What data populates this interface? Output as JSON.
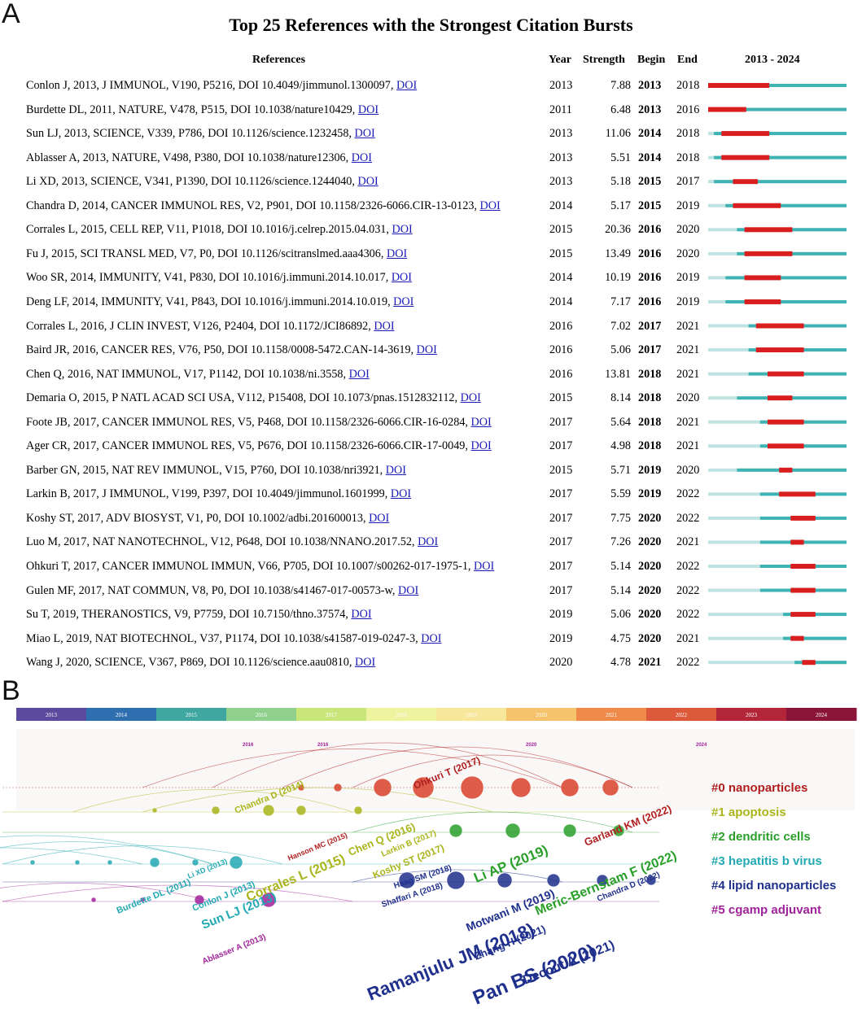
{
  "panel_a_label": "A",
  "panel_b_label": "B",
  "chart_data": [
    {
      "type": "table",
      "title": "Top 25 References with the Strongest Citation Bursts",
      "columns": [
        "References",
        "Year",
        "Strength",
        "Begin",
        "End",
        "2013 - 2024"
      ],
      "range": [
        2013,
        2024
      ],
      "rows": [
        {
          "ref": "Conlon J, 2013, J IMMUNOL, V190, P5216, DOI 10.4049/jimmunol.1300097,",
          "year": 2013,
          "strength": "7.88",
          "begin": 2013,
          "end": 2018
        },
        {
          "ref": "Burdette DL, 2011, NATURE, V478, P515, DOI 10.1038/nature10429,",
          "year": 2011,
          "strength": "6.48",
          "begin": 2013,
          "end": 2016
        },
        {
          "ref": "Sun LJ, 2013, SCIENCE, V339, P786, DOI 10.1126/science.1232458,",
          "year": 2013,
          "strength": "11.06",
          "begin": 2014,
          "end": 2018
        },
        {
          "ref": "Ablasser A, 2013, NATURE, V498, P380, DOI 10.1038/nature12306,",
          "year": 2013,
          "strength": "5.51",
          "begin": 2014,
          "end": 2018
        },
        {
          "ref": "Li XD, 2013, SCIENCE, V341, P1390, DOI 10.1126/science.1244040,",
          "year": 2013,
          "strength": "5.18",
          "begin": 2015,
          "end": 2017
        },
        {
          "ref": "Chandra D, 2014, CANCER IMMUNOL RES, V2, P901, DOI 10.1158/2326-6066.CIR-13-0123,",
          "year": 2014,
          "strength": "5.17",
          "begin": 2015,
          "end": 2019
        },
        {
          "ref": "Corrales L, 2015, CELL REP, V11, P1018, DOI 10.1016/j.celrep.2015.04.031,",
          "year": 2015,
          "strength": "20.36",
          "begin": 2016,
          "end": 2020
        },
        {
          "ref": "Fu J, 2015, SCI TRANSL MED, V7, P0, DOI 10.1126/scitranslmed.aaa4306,",
          "year": 2015,
          "strength": "13.49",
          "begin": 2016,
          "end": 2020
        },
        {
          "ref": "Woo SR, 2014, IMMUNITY, V41, P830, DOI 10.1016/j.immuni.2014.10.017,",
          "year": 2014,
          "strength": "10.19",
          "begin": 2016,
          "end": 2019
        },
        {
          "ref": "Deng LF, 2014, IMMUNITY, V41, P843, DOI 10.1016/j.immuni.2014.10.019,",
          "year": 2014,
          "strength": "7.17",
          "begin": 2016,
          "end": 2019
        },
        {
          "ref": "Corrales L, 2016, J CLIN INVEST, V126, P2404, DOI 10.1172/JCI86892,",
          "year": 2016,
          "strength": "7.02",
          "begin": 2017,
          "end": 2021
        },
        {
          "ref": "Baird JR, 2016, CANCER RES, V76, P50, DOI 10.1158/0008-5472.CAN-14-3619,",
          "year": 2016,
          "strength": "5.06",
          "begin": 2017,
          "end": 2021
        },
        {
          "ref": "Chen Q, 2016, NAT IMMUNOL, V17, P1142, DOI 10.1038/ni.3558,",
          "year": 2016,
          "strength": "13.81",
          "begin": 2018,
          "end": 2021
        },
        {
          "ref": "Demaria O, 2015, P NATL ACAD SCI USA, V112, P15408, DOI 10.1073/pnas.1512832112,",
          "year": 2015,
          "strength": "8.14",
          "begin": 2018,
          "end": 2020
        },
        {
          "ref": "Foote JB, 2017, CANCER IMMUNOL RES, V5, P468, DOI 10.1158/2326-6066.CIR-16-0284,",
          "year": 2017,
          "strength": "5.64",
          "begin": 2018,
          "end": 2021
        },
        {
          "ref": "Ager CR, 2017, CANCER IMMUNOL RES, V5, P676, DOI 10.1158/2326-6066.CIR-17-0049,",
          "year": 2017,
          "strength": "4.98",
          "begin": 2018,
          "end": 2021
        },
        {
          "ref": "Barber GN, 2015, NAT REV IMMUNOL, V15, P760, DOI 10.1038/nri3921,",
          "year": 2015,
          "strength": "5.71",
          "begin": 2019,
          "end": 2020
        },
        {
          "ref": "Larkin B, 2017, J IMMUNOL, V199, P397, DOI 10.4049/jimmunol.1601999,",
          "year": 2017,
          "strength": "5.59",
          "begin": 2019,
          "end": 2022
        },
        {
          "ref": "Koshy ST, 2017, ADV BIOSYST, V1, P0, DOI 10.1002/adbi.201600013,",
          "year": 2017,
          "strength": "7.75",
          "begin": 2020,
          "end": 2022
        },
        {
          "ref": "Luo M, 2017, NAT NANOTECHNOL, V12, P648, DOI 10.1038/NNANO.2017.52,",
          "year": 2017,
          "strength": "7.26",
          "begin": 2020,
          "end": 2021
        },
        {
          "ref": "Ohkuri T, 2017, CANCER IMMUNOL IMMUN, V66, P705, DOI 10.1007/s00262-017-1975-1,",
          "year": 2017,
          "strength": "5.14",
          "begin": 2020,
          "end": 2022
        },
        {
          "ref": "Gulen MF, 2017, NAT COMMUN, V8, P0, DOI 10.1038/s41467-017-00573-w,",
          "year": 2017,
          "strength": "5.14",
          "begin": 2020,
          "end": 2022
        },
        {
          "ref": "Su T, 2019, THERANOSTICS, V9, P7759, DOI 10.7150/thno.37574,",
          "year": 2019,
          "strength": "5.06",
          "begin": 2020,
          "end": 2022
        },
        {
          "ref": "Miao L, 2019, NAT BIOTECHNOL, V37, P1174, DOI 10.1038/s41587-019-0247-3,",
          "year": 2019,
          "strength": "4.75",
          "begin": 2020,
          "end": 2021
        },
        {
          "ref": "Wang J, 2020, SCIENCE, V367, P869, DOI 10.1126/science.aau0810,",
          "year": 2020,
          "strength": "4.78",
          "begin": 2021,
          "end": 2022
        }
      ],
      "link_label": "DOI",
      "bar_colors": {
        "burst": "#d81e1e",
        "active": "#3fb3b3",
        "inactive": "#bfe3e3"
      }
    },
    {
      "type": "timeline-network",
      "years": [
        "2013",
        "2014",
        "2015",
        "2016",
        "2017",
        "2018",
        "2019",
        "2020",
        "2021",
        "2022",
        "2023",
        "2024"
      ],
      "year_colors": [
        "#5b4a9e",
        "#2f6fb0",
        "#3fa6a0",
        "#8fd18c",
        "#c9e67a",
        "#eef3a0",
        "#f6e79a",
        "#f5c36b",
        "#ef8a4a",
        "#dc5a3a",
        "#b3263a",
        "#8a1538"
      ],
      "small_marks": [
        "2016",
        "2016",
        "2020",
        "2024"
      ],
      "clusters": [
        {
          "label": "#0 nanoparticles",
          "color": "#b01e1e"
        },
        {
          "label": "#1 apoptosis",
          "color": "#a9b51a"
        },
        {
          "label": "#2 dendritic cells",
          "color": "#2aa02a"
        },
        {
          "label": "#3 hepatitis b virus",
          "color": "#22a9b3"
        },
        {
          "label": "#4 lipid nanoparticles",
          "color": "#1f2f8c"
        },
        {
          "label": "#5 cgamp adjuvant",
          "color": "#a0229a"
        }
      ],
      "node_labels": [
        {
          "text": "Burdette DL (2011)",
          "cluster": 3
        },
        {
          "text": "Li XD (2013)",
          "cluster": 3
        },
        {
          "text": "Conlon J (2013)",
          "cluster": 3
        },
        {
          "text": "Sun LJ (2013)",
          "cluster": 3
        },
        {
          "text": "Ablasser A (2013)",
          "cluster": 5
        },
        {
          "text": "Chandra D (2014)",
          "cluster": 1
        },
        {
          "text": "Hanson MC (2015)",
          "cluster": 0
        },
        {
          "text": "Corrales L (2015)",
          "cluster": 1
        },
        {
          "text": "Ohkuri T (2017)",
          "cluster": 0
        },
        {
          "text": "Chen Q (2016)",
          "cluster": 1
        },
        {
          "text": "Koshy ST (2017)",
          "cluster": 1
        },
        {
          "text": "Larkin B (2017)",
          "cluster": 1
        },
        {
          "text": "Haag SM (2018)",
          "cluster": 4
        },
        {
          "text": "Shaffari A (2018)",
          "cluster": 4
        },
        {
          "text": "Li AP (2019)",
          "cluster": 2
        },
        {
          "text": "Motwani M (2019)",
          "cluster": 4
        },
        {
          "text": "Ramanjulu JM (2018)",
          "cluster": 4
        },
        {
          "text": "Zhang H (2021)",
          "cluster": 4
        },
        {
          "text": "Pan BS (2020)",
          "cluster": 4
        },
        {
          "text": "Decout A (2021)",
          "cluster": 4
        },
        {
          "text": "Meric-Bernstam F (2022)",
          "cluster": 2
        },
        {
          "text": "Garland KM (2022)",
          "cluster": 0
        },
        {
          "text": "Chandra D (2022)",
          "cluster": 4
        }
      ]
    }
  ]
}
